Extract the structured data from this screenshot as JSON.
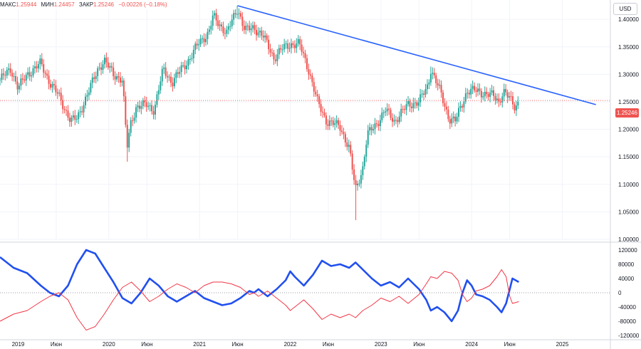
{
  "header": {
    "max_label": "МАКС",
    "max_value": "1.25944",
    "min_label": "МИН",
    "min_value": "1.24457",
    "close_label": "ЗАКР",
    "close_value": "1.25246",
    "change": "−0.00226 (−0.18%)"
  },
  "currency_button": "USD",
  "last_price_tag": "1.25246",
  "colors": {
    "up": "#26a69a",
    "down": "#ef5350",
    "trendline": "#2962ff",
    "cot_blue": "#2150f0",
    "cot_red": "#f23645"
  },
  "chart_data": [
    {
      "type": "candlestick",
      "timeframe": "weekly",
      "ylim": [
        1.0,
        1.43
      ],
      "y_ticks": [
        "1.40000",
        "1.35000",
        "1.30000",
        "1.25000",
        "1.20000",
        "1.15000",
        "1.10000",
        "1.05000",
        "1.00000"
      ],
      "x_ticks": [
        "2019",
        "Июн",
        "2020",
        "Июн",
        "2021",
        "Июн",
        "2022",
        "Июн",
        "2023",
        "Июн",
        "2024",
        "Июн",
        "2025"
      ],
      "grid": true,
      "last_price": 1.25246,
      "trendline": {
        "from": [
          2021.42,
          1.4248
        ],
        "to": [
          2025.37,
          1.245
        ],
        "color": "#2962ff"
      },
      "close_path": [
        [
          2018.8,
          1.29
        ],
        [
          2018.92,
          1.31
        ],
        [
          2019.0,
          1.275
        ],
        [
          2019.1,
          1.3
        ],
        [
          2019.25,
          1.32
        ],
        [
          2019.35,
          1.285
        ],
        [
          2019.45,
          1.26
        ],
        [
          2019.58,
          1.215
        ],
        [
          2019.65,
          1.22
        ],
        [
          2019.78,
          1.27
        ],
        [
          2019.88,
          1.31
        ],
        [
          2019.95,
          1.325
        ],
        [
          2020.05,
          1.3
        ],
        [
          2020.15,
          1.29
        ],
        [
          2020.2,
          1.165
        ],
        [
          2020.24,
          1.21
        ],
        [
          2020.3,
          1.24
        ],
        [
          2020.42,
          1.245
        ],
        [
          2020.5,
          1.235
        ],
        [
          2020.6,
          1.31
        ],
        [
          2020.7,
          1.285
        ],
        [
          2020.8,
          1.31
        ],
        [
          2020.9,
          1.33
        ],
        [
          2021.0,
          1.36
        ],
        [
          2021.1,
          1.375
        ],
        [
          2021.15,
          1.405
        ],
        [
          2021.3,
          1.375
        ],
        [
          2021.42,
          1.42
        ],
        [
          2021.5,
          1.38
        ],
        [
          2021.6,
          1.385
        ],
        [
          2021.7,
          1.37
        ],
        [
          2021.82,
          1.33
        ],
        [
          2021.9,
          1.345
        ],
        [
          2022.0,
          1.355
        ],
        [
          2022.1,
          1.355
        ],
        [
          2022.2,
          1.31
        ],
        [
          2022.3,
          1.25
        ],
        [
          2022.4,
          1.215
        ],
        [
          2022.55,
          1.205
        ],
        [
          2022.65,
          1.165
        ],
        [
          2022.72,
          1.09
        ],
        [
          2022.8,
          1.13
        ],
        [
          2022.85,
          1.19
        ],
        [
          2022.95,
          1.21
        ],
        [
          2023.05,
          1.235
        ],
        [
          2023.15,
          1.215
        ],
        [
          2023.3,
          1.245
        ],
        [
          2023.42,
          1.25
        ],
        [
          2023.52,
          1.28
        ],
        [
          2023.55,
          1.31
        ],
        [
          2023.65,
          1.27
        ],
        [
          2023.75,
          1.22
        ],
        [
          2023.82,
          1.215
        ],
        [
          2023.95,
          1.27
        ],
        [
          2024.05,
          1.27
        ],
        [
          2024.15,
          1.265
        ],
        [
          2024.25,
          1.26
        ],
        [
          2024.3,
          1.25
        ],
        [
          2024.35,
          1.27
        ],
        [
          2024.42,
          1.255
        ],
        [
          2024.48,
          1.24
        ],
        [
          2024.52,
          1.252
        ]
      ],
      "wick_extremes": [
        {
          "x": 2020.2,
          "low": 1.1412
        },
        {
          "x": 2021.42,
          "high": 1.4248
        },
        {
          "x": 2022.72,
          "low": 1.0349
        },
        {
          "x": 2023.55,
          "high": 1.3142
        }
      ]
    },
    {
      "type": "line",
      "name": "",
      "ylim": [
        -130000,
        130000
      ],
      "y_ticks": [
        "120000",
        "80000",
        "40000",
        "0",
        "-40000",
        "-80000",
        "-120000"
      ],
      "zero_line": true,
      "series": [
        {
          "name": "",
          "color": "#2150f0",
          "values": [
            [
              2018.8,
              100000
            ],
            [
              2018.95,
              70000
            ],
            [
              2019.1,
              55000
            ],
            [
              2019.25,
              20000
            ],
            [
              2019.35,
              0
            ],
            [
              2019.45,
              -10000
            ],
            [
              2019.55,
              20000
            ],
            [
              2019.65,
              80000
            ],
            [
              2019.75,
              120000
            ],
            [
              2019.85,
              110000
            ],
            [
              2019.95,
              70000
            ],
            [
              2020.05,
              30000
            ],
            [
              2020.15,
              -15000
            ],
            [
              2020.25,
              -30000
            ],
            [
              2020.35,
              0
            ],
            [
              2020.45,
              40000
            ],
            [
              2020.55,
              20000
            ],
            [
              2020.65,
              -10000
            ],
            [
              2020.75,
              -25000
            ],
            [
              2020.85,
              -10000
            ],
            [
              2020.95,
              5000
            ],
            [
              2021.05,
              -15000
            ],
            [
              2021.15,
              -25000
            ],
            [
              2021.25,
              -35000
            ],
            [
              2021.35,
              -30000
            ],
            [
              2021.45,
              -15000
            ],
            [
              2021.55,
              5000
            ],
            [
              2021.6,
              0
            ],
            [
              2021.65,
              10000
            ],
            [
              2021.75,
              -10000
            ],
            [
              2021.85,
              10000
            ],
            [
              2021.95,
              35000
            ],
            [
              2022.0,
              60000
            ],
            [
              2022.05,
              45000
            ],
            [
              2022.15,
              20000
            ],
            [
              2022.25,
              50000
            ],
            [
              2022.35,
              90000
            ],
            [
              2022.45,
              75000
            ],
            [
              2022.55,
              80000
            ],
            [
              2022.65,
              70000
            ],
            [
              2022.72,
              85000
            ],
            [
              2022.8,
              65000
            ],
            [
              2022.9,
              40000
            ],
            [
              2023.0,
              20000
            ],
            [
              2023.1,
              30000
            ],
            [
              2023.2,
              15000
            ],
            [
              2023.3,
              40000
            ],
            [
              2023.42,
              10000
            ],
            [
              2023.5,
              -20000
            ],
            [
              2023.55,
              -50000
            ],
            [
              2023.62,
              -40000
            ],
            [
              2023.7,
              -55000
            ],
            [
              2023.78,
              -80000
            ],
            [
              2023.85,
              -50000
            ],
            [
              2023.9,
              0
            ],
            [
              2023.95,
              35000
            ],
            [
              2024.0,
              20000
            ],
            [
              2024.05,
              -5000
            ],
            [
              2024.12,
              -10000
            ],
            [
              2024.2,
              -20000
            ],
            [
              2024.28,
              -40000
            ],
            [
              2024.33,
              -55000
            ],
            [
              2024.38,
              -30000
            ],
            [
              2024.42,
              10000
            ],
            [
              2024.45,
              40000
            ],
            [
              2024.52,
              30000
            ]
          ]
        },
        {
          "name": "",
          "color": "#f23645",
          "values": [
            [
              2018.8,
              -80000
            ],
            [
              2018.95,
              -60000
            ],
            [
              2019.1,
              -50000
            ],
            [
              2019.25,
              -25000
            ],
            [
              2019.35,
              -10000
            ],
            [
              2019.45,
              0
            ],
            [
              2019.55,
              -20000
            ],
            [
              2019.65,
              -70000
            ],
            [
              2019.75,
              -105000
            ],
            [
              2019.85,
              -95000
            ],
            [
              2019.95,
              -60000
            ],
            [
              2020.05,
              -20000
            ],
            [
              2020.15,
              15000
            ],
            [
              2020.25,
              30000
            ],
            [
              2020.35,
              5000
            ],
            [
              2020.45,
              -25000
            ],
            [
              2020.55,
              -10000
            ],
            [
              2020.65,
              10000
            ],
            [
              2020.75,
              25000
            ],
            [
              2020.85,
              15000
            ],
            [
              2020.95,
              0
            ],
            [
              2021.05,
              20000
            ],
            [
              2021.15,
              30000
            ],
            [
              2021.25,
              30000
            ],
            [
              2021.35,
              25000
            ],
            [
              2021.45,
              15000
            ],
            [
              2021.55,
              -5000
            ],
            [
              2021.6,
              0
            ],
            [
              2021.65,
              -10000
            ],
            [
              2021.75,
              5000
            ],
            [
              2021.85,
              -15000
            ],
            [
              2021.95,
              -35000
            ],
            [
              2022.0,
              -50000
            ],
            [
              2022.05,
              -40000
            ],
            [
              2022.15,
              -20000
            ],
            [
              2022.25,
              -45000
            ],
            [
              2022.35,
              -75000
            ],
            [
              2022.45,
              -60000
            ],
            [
              2022.55,
              -70000
            ],
            [
              2022.65,
              -60000
            ],
            [
              2022.72,
              -70000
            ],
            [
              2022.8,
              -50000
            ],
            [
              2022.9,
              -35000
            ],
            [
              2023.0,
              -15000
            ],
            [
              2023.1,
              -25000
            ],
            [
              2023.2,
              -10000
            ],
            [
              2023.3,
              -30000
            ],
            [
              2023.42,
              -5000
            ],
            [
              2023.5,
              25000
            ],
            [
              2023.55,
              45000
            ],
            [
              2023.62,
              40000
            ],
            [
              2023.7,
              60000
            ],
            [
              2023.78,
              55000
            ],
            [
              2023.85,
              35000
            ],
            [
              2023.9,
              -5000
            ],
            [
              2023.95,
              -25000
            ],
            [
              2024.0,
              -15000
            ],
            [
              2024.05,
              5000
            ],
            [
              2024.12,
              10000
            ],
            [
              2024.2,
              20000
            ],
            [
              2024.28,
              45000
            ],
            [
              2024.33,
              65000
            ],
            [
              2024.38,
              45000
            ],
            [
              2024.42,
              -10000
            ],
            [
              2024.45,
              -30000
            ],
            [
              2024.52,
              -25000
            ]
          ]
        }
      ]
    }
  ]
}
